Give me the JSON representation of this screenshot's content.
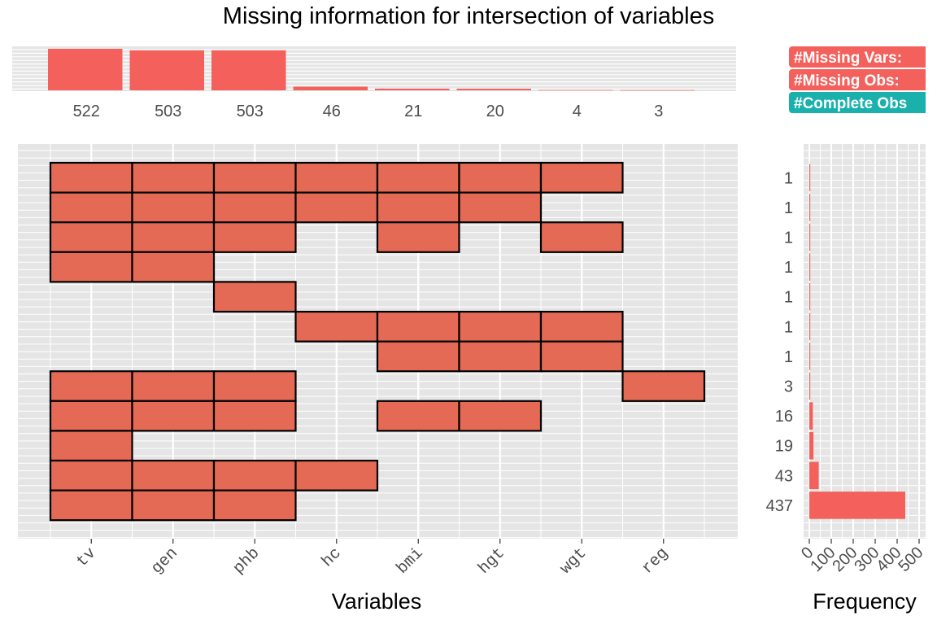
{
  "title": "Missing information for intersection of variables",
  "colors": {
    "panel_bg": "#e5e5e5",
    "grid": "#ffffff",
    "tile_fill": "#e56a55",
    "tile_stroke": "#000000",
    "bar_fill": "#f4605c",
    "badge_red": "#f4605c",
    "badge_teal": "#1ab1ad"
  },
  "chart_data": [
    {
      "type": "bar",
      "name": "top-bars",
      "categories": [
        "tv",
        "gen",
        "phb",
        "hc",
        "bmi",
        "hgt",
        "wgt",
        "reg"
      ],
      "values": [
        522,
        503,
        503,
        46,
        21,
        20,
        4,
        3
      ],
      "labels": [
        "522",
        "503",
        "503",
        "46",
        "21",
        "20",
        "4",
        "3"
      ]
    },
    {
      "type": "heatmap",
      "name": "missing-pattern-matrix",
      "variables": [
        "tv",
        "gen",
        "phb",
        "hc",
        "bmi",
        "hgt",
        "wgt",
        "reg"
      ],
      "xlabel": "Variables",
      "rows": [
        {
          "label": "1",
          "missing": [
            1,
            1,
            1,
            1,
            1,
            1,
            1,
            0
          ]
        },
        {
          "label": "1",
          "missing": [
            1,
            1,
            1,
            1,
            1,
            1,
            0,
            0
          ]
        },
        {
          "label": "1",
          "missing": [
            1,
            1,
            1,
            0,
            1,
            0,
            1,
            0
          ]
        },
        {
          "label": "1",
          "missing": [
            1,
            1,
            0,
            0,
            0,
            0,
            0,
            0
          ]
        },
        {
          "label": "1",
          "missing": [
            0,
            0,
            1,
            0,
            0,
            0,
            0,
            0
          ]
        },
        {
          "label": "1",
          "missing": [
            0,
            0,
            0,
            1,
            1,
            1,
            1,
            0
          ]
        },
        {
          "label": "1",
          "missing": [
            0,
            0,
            0,
            0,
            1,
            1,
            1,
            0
          ]
        },
        {
          "label": "3",
          "missing": [
            1,
            1,
            1,
            0,
            0,
            0,
            0,
            1
          ]
        },
        {
          "label": "16",
          "missing": [
            1,
            1,
            1,
            0,
            1,
            1,
            0,
            0
          ]
        },
        {
          "label": "19",
          "missing": [
            1,
            0,
            0,
            0,
            0,
            0,
            0,
            0
          ]
        },
        {
          "label": "43",
          "missing": [
            1,
            1,
            1,
            1,
            0,
            0,
            0,
            0
          ]
        },
        {
          "label": "437",
          "missing": [
            1,
            1,
            1,
            0,
            0,
            0,
            0,
            0
          ]
        }
      ]
    },
    {
      "type": "bar",
      "name": "frequency-bars",
      "orientation": "horizontal",
      "values": [
        1,
        1,
        1,
        1,
        1,
        1,
        1,
        3,
        16,
        19,
        43,
        437
      ],
      "xlabel": "Frequency",
      "xlim": [
        0,
        500
      ],
      "xticks": [
        "0",
        "100",
        "200",
        "300",
        "400",
        "500"
      ]
    }
  ],
  "legend_badges": [
    {
      "text": "#Missing Vars:",
      "color": "red"
    },
    {
      "text": "#Missing Obs:",
      "color": "red"
    },
    {
      "text": "#Complete Obs",
      "color": "teal"
    }
  ]
}
